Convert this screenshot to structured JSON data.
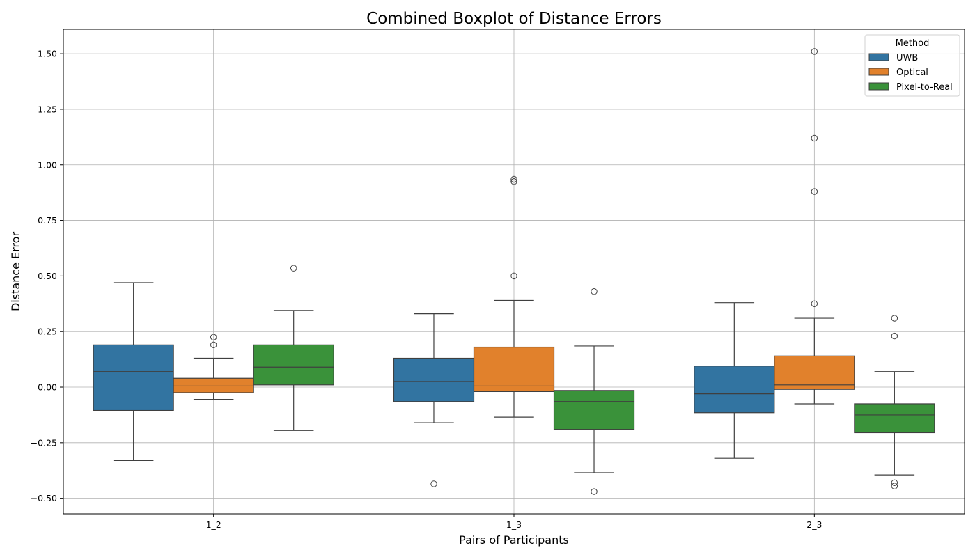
{
  "chart_data": {
    "type": "boxplot",
    "title": "Combined Boxplot of Distance Errors",
    "xlabel": "Pairs of Participants",
    "ylabel": "Distance Error",
    "categories": [
      "1_2",
      "1_3",
      "2_3"
    ],
    "ylim": [
      -0.57,
      1.61
    ],
    "yticks": [
      -0.5,
      -0.25,
      0.0,
      0.25,
      0.5,
      0.75,
      1.0,
      1.25,
      1.5
    ],
    "ytick_labels": [
      "−0.50",
      "−0.25",
      "0.00",
      "0.25",
      "0.50",
      "0.75",
      "1.00",
      "1.25",
      "1.50"
    ],
    "grid": true,
    "legend": {
      "title": "Method",
      "placement": "top-right",
      "entries": [
        "UWB",
        "Optical",
        "Pixel-to-Real"
      ]
    },
    "series": [
      {
        "name": "UWB",
        "color": "#3274a1",
        "boxes": [
          {
            "whisker_low": -0.33,
            "q1": -0.105,
            "median": 0.07,
            "q3": 0.19,
            "whisker_high": 0.47,
            "outliers": []
          },
          {
            "whisker_low": -0.16,
            "q1": -0.065,
            "median": 0.025,
            "q3": 0.13,
            "whisker_high": 0.33,
            "outliers": [
              -0.435
            ]
          },
          {
            "whisker_low": -0.32,
            "q1": -0.115,
            "median": -0.03,
            "q3": 0.095,
            "whisker_high": 0.38,
            "outliers": []
          }
        ]
      },
      {
        "name": "Optical",
        "color": "#e1812c",
        "boxes": [
          {
            "whisker_low": -0.055,
            "q1": -0.025,
            "median": 0.005,
            "q3": 0.04,
            "whisker_high": 0.13,
            "outliers": [
              0.19,
              0.225
            ]
          },
          {
            "whisker_low": -0.135,
            "q1": -0.02,
            "median": 0.005,
            "q3": 0.18,
            "whisker_high": 0.39,
            "outliers": [
              0.5,
              0.925,
              0.935
            ]
          },
          {
            "whisker_low": -0.075,
            "q1": -0.01,
            "median": 0.01,
            "q3": 0.14,
            "whisker_high": 0.31,
            "outliers": [
              0.375,
              0.88,
              1.12,
              1.51
            ]
          }
        ]
      },
      {
        "name": "Pixel-to-Real",
        "color": "#3a923a",
        "boxes": [
          {
            "whisker_low": -0.195,
            "q1": 0.01,
            "median": 0.09,
            "q3": 0.19,
            "whisker_high": 0.345,
            "outliers": [
              0.535
            ]
          },
          {
            "whisker_low": -0.385,
            "q1": -0.19,
            "median": -0.065,
            "q3": -0.015,
            "whisker_high": 0.185,
            "outliers": [
              0.43,
              -0.47
            ]
          },
          {
            "whisker_low": -0.395,
            "q1": -0.205,
            "median": -0.125,
            "q3": -0.075,
            "whisker_high": 0.07,
            "outliers": [
              0.31,
              0.23,
              -0.43,
              -0.445
            ]
          }
        ]
      }
    ]
  }
}
